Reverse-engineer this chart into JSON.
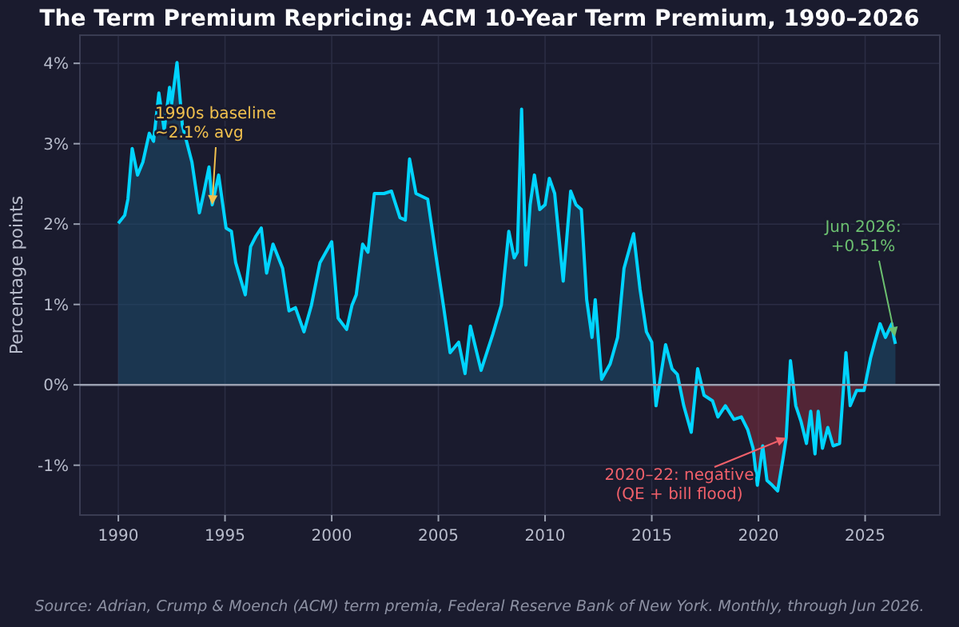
{
  "chart_data": {
    "type": "area",
    "title": "The Term Premium Repricing: ACM 10-Year Term Premium, 1990–2026",
    "ylabel": "Percentage points",
    "x": [
      1990.0,
      1990.3,
      1990.45,
      1990.65,
      1990.9,
      1991.15,
      1991.45,
      1991.65,
      1991.9,
      1992.15,
      1992.4,
      1992.5,
      1992.75,
      1993.0,
      1993.45,
      1993.8,
      1994.0,
      1994.25,
      1994.4,
      1994.7,
      1995.05,
      1995.3,
      1995.5,
      1995.95,
      1996.2,
      1996.45,
      1996.7,
      1996.95,
      1997.25,
      1997.7,
      1998.0,
      1998.3,
      1998.7,
      1999.05,
      1999.45,
      2000.0,
      2000.3,
      2000.7,
      2000.95,
      2001.15,
      2001.45,
      2001.7,
      2002.0,
      2002.45,
      2002.8,
      2003.2,
      2003.45,
      2003.65,
      2003.95,
      2004.5,
      2004.9,
      2005.25,
      2005.55,
      2005.95,
      2006.25,
      2006.5,
      2007.0,
      2007.55,
      2007.95,
      2008.3,
      2008.55,
      2008.7,
      2008.9,
      2009.1,
      2009.3,
      2009.5,
      2009.75,
      2010.0,
      2010.2,
      2010.45,
      2010.85,
      2011.2,
      2011.45,
      2011.7,
      2011.95,
      2012.2,
      2012.35,
      2012.65,
      2013.05,
      2013.4,
      2013.7,
      2014.15,
      2014.45,
      2014.75,
      2015.0,
      2015.2,
      2015.65,
      2015.95,
      2016.2,
      2016.5,
      2016.85,
      2017.15,
      2017.45,
      2017.85,
      2018.1,
      2018.45,
      2018.85,
      2019.2,
      2019.5,
      2019.75,
      2019.95,
      2020.2,
      2020.4,
      2020.65,
      2020.9,
      2021.15,
      2021.3,
      2021.5,
      2021.75,
      2022.0,
      2022.25,
      2022.45,
      2022.65,
      2022.8,
      2023.0,
      2023.25,
      2023.5,
      2023.8,
      2024.1,
      2024.3,
      2024.6,
      2024.95,
      2025.25,
      2025.45,
      2025.7,
      2025.95,
      2026.25,
      2026.35,
      2026.42
    ],
    "series": [
      {
        "color": "#00d4ff",
        "values": [
          2.01,
          2.11,
          2.31,
          2.94,
          2.61,
          2.77,
          3.13,
          3.03,
          3.63,
          3.17,
          3.7,
          3.5,
          4.01,
          3.23,
          2.77,
          2.14,
          2.38,
          2.71,
          2.24,
          2.61,
          1.95,
          1.91,
          1.52,
          1.12,
          1.72,
          1.85,
          1.95,
          1.39,
          1.75,
          1.45,
          0.92,
          0.96,
          0.66,
          0.99,
          1.52,
          1.78,
          0.83,
          0.69,
          0.99,
          1.12,
          1.75,
          1.65,
          2.38,
          2.38,
          2.41,
          2.08,
          2.05,
          2.81,
          2.38,
          2.31,
          1.58,
          0.96,
          0.4,
          0.53,
          0.14,
          0.73,
          0.18,
          0.63,
          0.99,
          1.91,
          1.58,
          1.65,
          3.43,
          1.49,
          2.24,
          2.61,
          2.18,
          2.24,
          2.57,
          2.38,
          1.29,
          2.41,
          2.24,
          2.18,
          1.06,
          0.59,
          1.06,
          0.07,
          0.26,
          0.59,
          1.45,
          1.88,
          1.19,
          0.66,
          0.53,
          -0.26,
          0.5,
          0.2,
          0.13,
          -0.26,
          -0.59,
          0.2,
          -0.13,
          -0.2,
          -0.4,
          -0.26,
          -0.43,
          -0.4,
          -0.56,
          -0.79,
          -1.25,
          -0.76,
          -1.19,
          -1.25,
          -1.32,
          -0.92,
          -0.66,
          0.3,
          -0.26,
          -0.46,
          -0.73,
          -0.33,
          -0.86,
          -0.33,
          -0.79,
          -0.53,
          -0.76,
          -0.73,
          0.4,
          -0.26,
          -0.07,
          -0.07,
          0.33,
          0.53,
          0.76,
          0.59,
          0.76,
          0.59,
          0.51
        ]
      }
    ],
    "xlim": [
      1988.2,
      2028.5
    ],
    "ylim": [
      -1.62,
      4.35
    ],
    "xticks": [
      1990,
      1995,
      2000,
      2005,
      2010,
      2015,
      2020,
      2025
    ],
    "yticks": [
      {
        "value": -1,
        "label": "-1%"
      },
      {
        "value": 0,
        "label": "0%"
      },
      {
        "value": 1,
        "label": "1%"
      },
      {
        "value": 2,
        "label": "2%"
      },
      {
        "value": 3,
        "label": "3%"
      },
      {
        "value": 4,
        "label": "4%"
      }
    ],
    "grid": true,
    "ref_lines": [
      {
        "axis": "y",
        "value": 0,
        "color": "#9aa0b0"
      }
    ],
    "annotations": [
      {
        "text": "1990s baseline\n~2.1% avg",
        "x": 1994.4,
        "y": 2.24
      },
      {
        "text": "2020–22: negative\n(QE + bill flood)",
        "x": 2021.3,
        "y": -0.66
      },
      {
        "text": "Jun 2026:\n+0.51%",
        "x": 2026.4,
        "y": 0.6
      },
      "Source: Adrian, Crump & Moench (ACM) term premia, Federal Reserve Bank of New York. Monthly, through Jun 2026."
    ]
  }
}
